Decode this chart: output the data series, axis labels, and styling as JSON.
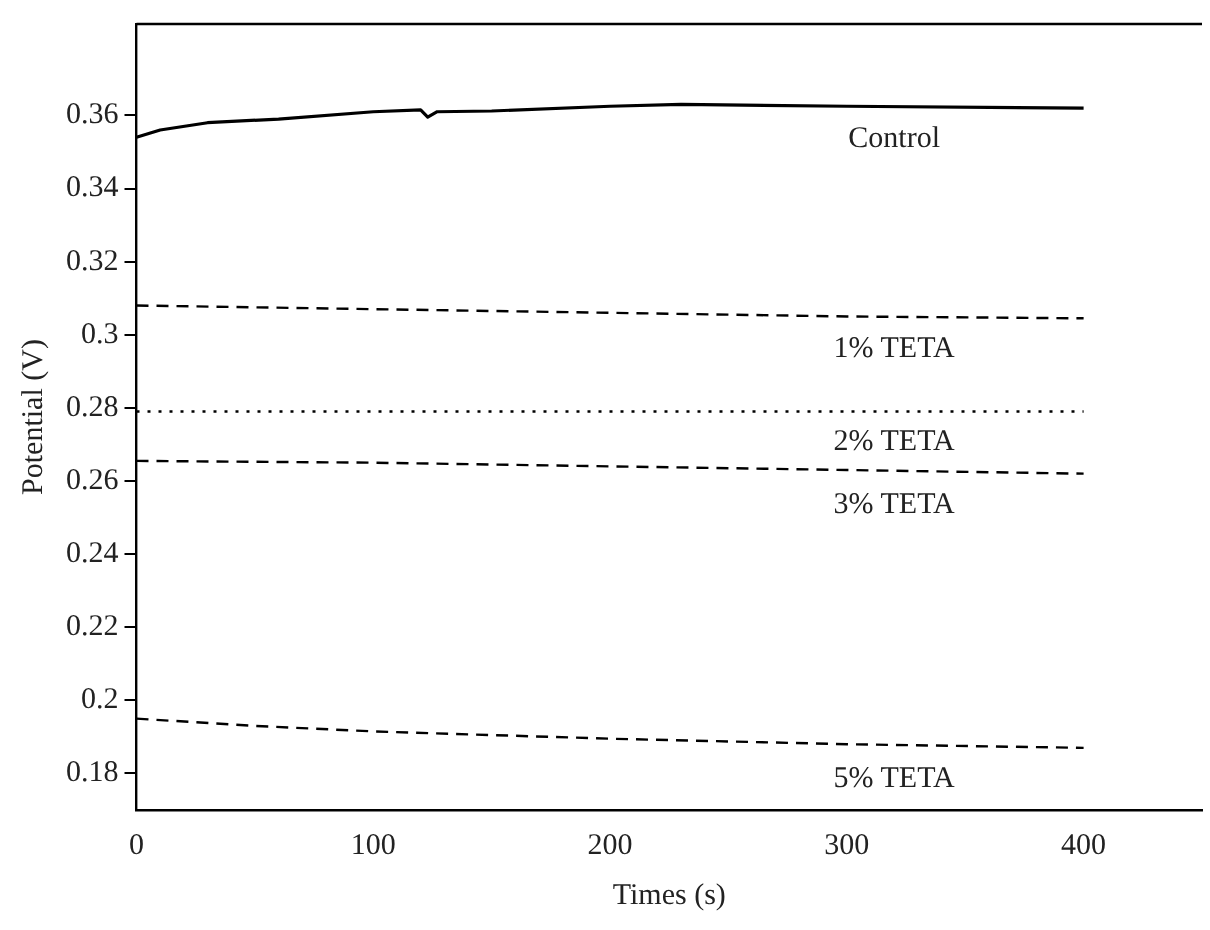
{
  "chart_data": {
    "type": "line",
    "xlabel": "Times (s)",
    "ylabel": "Potential (V)",
    "xlim": [
      0,
      450
    ],
    "xticks": [
      0,
      100,
      200,
      300,
      400
    ],
    "ylim": [
      0.17,
      0.385
    ],
    "yticks": [
      0.18,
      0.2,
      0.22,
      0.24,
      0.26,
      0.28,
      0.3,
      0.32,
      0.34,
      0.36
    ],
    "grid": false,
    "legend": false,
    "marker": "none",
    "series": [
      {
        "name": "Control",
        "color": "#000000",
        "line_style": "solid",
        "x": [
          0,
          10,
          30,
          60,
          100,
          120,
          123,
          127,
          150,
          200,
          230,
          300,
          400
        ],
        "values": [
          0.354,
          0.356,
          0.358,
          0.359,
          0.361,
          0.3615,
          0.3595,
          0.361,
          0.3612,
          0.3625,
          0.363,
          0.3625,
          0.362
        ]
      },
      {
        "name": "1% TETA",
        "color": "#000000",
        "line_style": "dashed",
        "x": [
          0,
          100,
          200,
          300,
          400
        ],
        "values": [
          0.308,
          0.307,
          0.306,
          0.305,
          0.3045
        ]
      },
      {
        "name": "2% TETA",
        "color": "#000000",
        "line_style": "dotted",
        "x": [
          0,
          400
        ],
        "values": [
          0.279,
          0.279
        ]
      },
      {
        "name": "3% TETA",
        "color": "#000000",
        "line_style": "dashed",
        "x": [
          0,
          100,
          200,
          300,
          400
        ],
        "values": [
          0.2655,
          0.265,
          0.264,
          0.263,
          0.262
        ]
      },
      {
        "name": "5% TETA",
        "color": "#000000",
        "line_style": "dashed",
        "x": [
          0,
          50,
          100,
          200,
          300,
          400
        ],
        "values": [
          0.195,
          0.193,
          0.1915,
          0.1895,
          0.188,
          0.187
        ]
      }
    ]
  }
}
